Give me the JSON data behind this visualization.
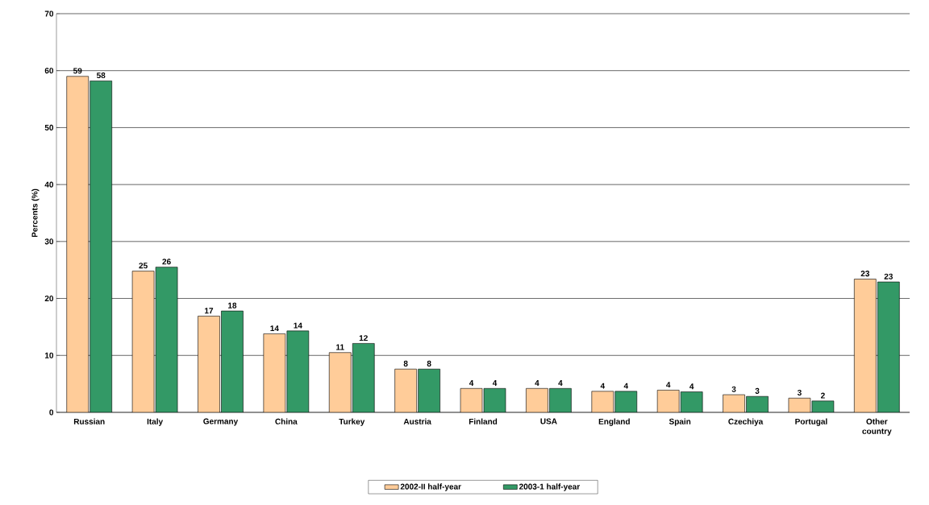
{
  "chart_data": {
    "type": "bar",
    "ylabel": "Percents (%)",
    "categories": [
      "Russian",
      "Italy",
      "Germany",
      "China",
      "Turkey",
      "Austria",
      "Finland",
      "USA",
      "England",
      "Spain",
      "Czechiya",
      "Portugal",
      "Other country"
    ],
    "series": [
      {
        "name": "2002-II half-year",
        "color": "#ffcc99",
        "values": [
          59.0,
          24.8,
          16.9,
          13.8,
          10.5,
          7.6,
          4.2,
          4.2,
          3.7,
          3.9,
          3.1,
          2.5,
          23.4
        ],
        "value_labels": [
          "59",
          "25",
          "17",
          "14",
          "11",
          "8",
          "4",
          "4",
          "4",
          "4",
          "3",
          "3",
          "23"
        ]
      },
      {
        "name": "2003-1 half-year",
        "color": "#339966",
        "values": [
          58.2,
          25.5,
          17.8,
          14.3,
          12.1,
          7.6,
          4.2,
          4.2,
          3.7,
          3.6,
          2.8,
          2.0,
          22.9
        ],
        "value_labels": [
          "58",
          "26",
          "18",
          "14",
          "12",
          "8",
          "4",
          "4",
          "4",
          "4",
          "3",
          "2",
          "23"
        ]
      }
    ],
    "ylim": [
      0,
      70
    ],
    "yticks": [
      0,
      10,
      20,
      30,
      40,
      50,
      60,
      70
    ],
    "grid": "y",
    "legend": "bottom"
  }
}
